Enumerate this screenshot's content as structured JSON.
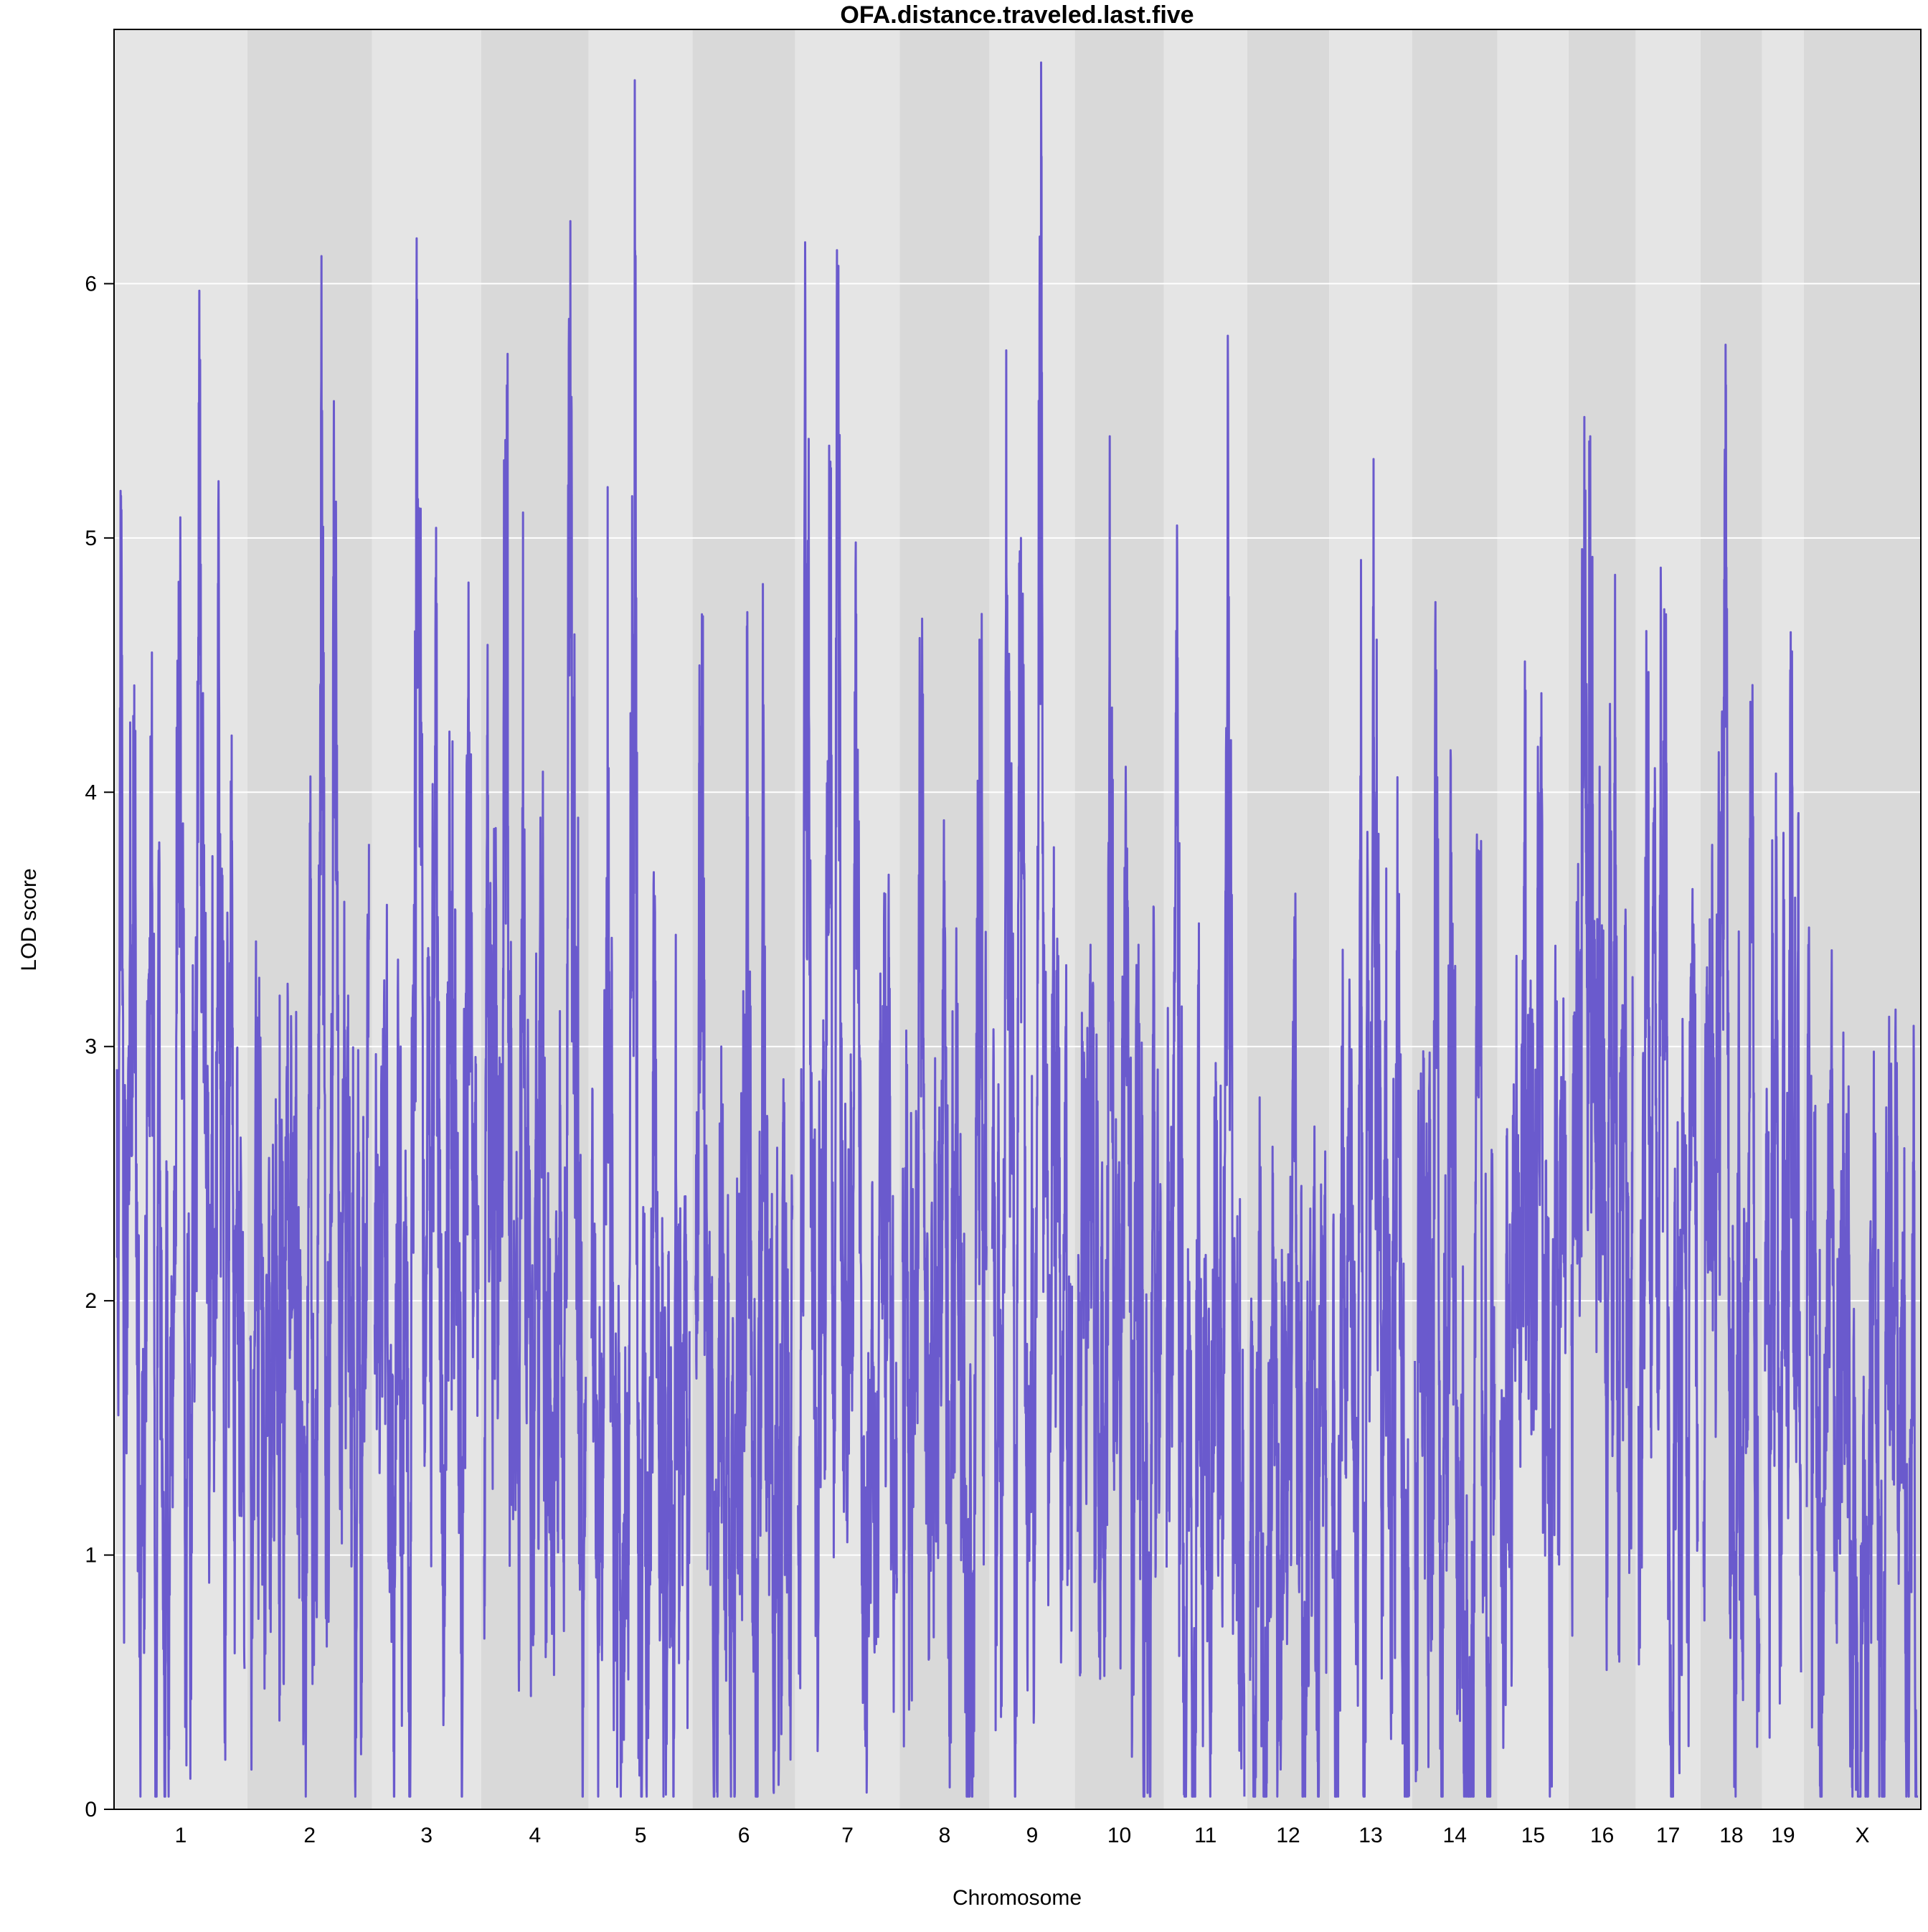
{
  "chart_data": {
    "type": "line",
    "title": "OFA.distance.traveled.last.five",
    "xlabel": "Chromosome",
    "ylabel": "LOD score",
    "ylim": [
      0,
      7
    ],
    "yticks": [
      0,
      1,
      2,
      3,
      4,
      5,
      6
    ],
    "grid": "horizontal",
    "colors": {
      "line": "#6A5ACD",
      "band_light": "#E5E5E5",
      "band_dark": "#D9D9D9",
      "grid": "#FFFFFF"
    },
    "chromosomes": [
      {
        "name": "1",
        "range": [
          0,
          195
        ],
        "baseline": 1.6,
        "seed": 11,
        "peaks": [
          [
            5,
            3.3
          ],
          [
            25,
            4.3
          ],
          [
            52,
            3.9
          ],
          [
            95,
            4.3
          ],
          [
            127,
            5.7
          ],
          [
            155,
            5.1
          ],
          [
            175,
            3.0
          ]
        ]
      },
      {
        "name": "2",
        "range": [
          0,
          182
        ],
        "baseline": 1.4,
        "seed": 23,
        "peaks": [
          [
            15,
            2.7
          ],
          [
            45,
            3.2
          ],
          [
            110,
            5.5
          ],
          [
            130,
            3.9
          ],
          [
            150,
            3.2
          ]
        ]
      },
      {
        "name": "3",
        "range": [
          0,
          160
        ],
        "baseline": 1.5,
        "seed": 37,
        "peaks": [
          [
            40,
            3.0
          ],
          [
            65,
            4.5
          ],
          [
            95,
            3.9
          ],
          [
            120,
            4.2
          ],
          [
            145,
            4.5
          ]
        ]
      },
      {
        "name": "4",
        "range": [
          0,
          157
        ],
        "baseline": 1.6,
        "seed": 41,
        "peaks": [
          [
            15,
            3.4
          ],
          [
            35,
            5.6
          ],
          [
            60,
            5.1
          ],
          [
            85,
            3.1
          ],
          [
            135,
            5.5
          ],
          [
            145,
            3.9
          ]
        ]
      },
      {
        "name": "5",
        "range": [
          0,
          152
        ],
        "baseline": 1.3,
        "seed": 53,
        "peaks": [
          [
            25,
            5.2
          ],
          [
            67,
            6.8
          ],
          [
            95,
            2.9
          ],
          [
            135,
            2.3
          ]
        ]
      },
      {
        "name": "6",
        "range": [
          0,
          150
        ],
        "baseline": 1.4,
        "seed": 67,
        "peaks": [
          [
            10,
            4.7
          ],
          [
            40,
            3.0
          ],
          [
            80,
            4.0
          ],
          [
            105,
            4.2
          ],
          [
            135,
            2.4
          ]
        ]
      },
      {
        "name": "7",
        "range": [
          0,
          153
        ],
        "baseline": 1.7,
        "seed": 71,
        "peaks": [
          [
            15,
            4.5
          ],
          [
            50,
            5.3
          ],
          [
            62,
            5.3
          ],
          [
            90,
            4.7
          ],
          [
            135,
            3.6
          ]
        ]
      },
      {
        "name": "8",
        "range": [
          0,
          131
        ],
        "baseline": 1.5,
        "seed": 83,
        "peaks": [
          [
            30,
            3.9
          ],
          [
            65,
            3.6
          ],
          [
            85,
            3.0
          ],
          [
            120,
            4.6
          ]
        ]
      },
      {
        "name": "9",
        "range": [
          0,
          125
        ],
        "baseline": 1.6,
        "seed": 97,
        "peaks": [
          [
            25,
            3.8
          ],
          [
            45,
            5.0
          ],
          [
            77,
            6.5
          ],
          [
            100,
            2.9
          ]
        ]
      },
      {
        "name": "10",
        "range": [
          0,
          130
        ],
        "baseline": 1.5,
        "seed": 101,
        "peaks": [
          [
            20,
            3.4
          ],
          [
            50,
            5.4
          ],
          [
            75,
            4.1
          ],
          [
            95,
            3.4
          ]
        ]
      },
      {
        "name": "11",
        "range": [
          0,
          122
        ],
        "baseline": 1.6,
        "seed": 113,
        "peaks": [
          [
            20,
            3.8
          ],
          [
            50,
            3.3
          ],
          [
            75,
            2.8
          ],
          [
            98,
            3.7
          ],
          [
            115,
            2.4
          ]
        ]
      },
      {
        "name": "12",
        "range": [
          0,
          120
        ],
        "baseline": 1.2,
        "seed": 127,
        "peaks": [
          [
            15,
            2.8
          ],
          [
            50,
            2.2
          ],
          [
            95,
            1.9
          ]
        ]
      },
      {
        "name": "13",
        "range": [
          0,
          121
        ],
        "baseline": 1.5,
        "seed": 131,
        "peaks": [
          [
            15,
            3.0
          ],
          [
            45,
            3.4
          ],
          [
            70,
            4.6
          ],
          [
            85,
            3.7
          ],
          [
            105,
            3.6
          ]
        ]
      },
      {
        "name": "14",
        "range": [
          0,
          125
        ],
        "baseline": 1.3,
        "seed": 139,
        "peaks": [
          [
            30,
            3.1
          ],
          [
            60,
            3.3
          ],
          [
            100,
            2.8
          ]
        ]
      },
      {
        "name": "15",
        "range": [
          0,
          104
        ],
        "baseline": 1.5,
        "seed": 149,
        "peaks": [
          [
            15,
            2.3
          ],
          [
            40,
            4.4
          ],
          [
            65,
            3.3
          ],
          [
            90,
            2.5
          ]
        ]
      },
      {
        "name": "16",
        "range": [
          0,
          98
        ],
        "baseline": 1.6,
        "seed": 151,
        "peaks": [
          [
            20,
            4.9
          ],
          [
            30,
            5.4
          ],
          [
            45,
            4.1
          ],
          [
            70,
            3.9
          ],
          [
            85,
            3.1
          ]
        ]
      },
      {
        "name": "17",
        "range": [
          0,
          95
        ],
        "baseline": 1.6,
        "seed": 163,
        "peaks": [
          [
            15,
            4.1
          ],
          [
            40,
            4.2
          ],
          [
            70,
            2.8
          ],
          [
            85,
            2.9
          ]
        ]
      },
      {
        "name": "18",
        "range": [
          0,
          90
        ],
        "baseline": 1.5,
        "seed": 173,
        "peaks": [
          [
            10,
            3.5
          ],
          [
            35,
            4.7
          ],
          [
            55,
            2.5
          ],
          [
            75,
            2.8
          ]
        ]
      },
      {
        "name": "19",
        "range": [
          0,
          61
        ],
        "baseline": 1.4,
        "seed": 181,
        "peaks": [
          [
            20,
            2.9
          ],
          [
            45,
            3.9
          ],
          [
            55,
            1.8
          ]
        ]
      },
      {
        "name": "X",
        "range": [
          0,
          171
        ],
        "baseline": 1.3,
        "seed": 191,
        "peaks": [
          [
            20,
            2.2
          ],
          [
            60,
            1.9
          ],
          [
            110,
            2.2
          ],
          [
            150,
            2.6
          ]
        ]
      }
    ]
  }
}
